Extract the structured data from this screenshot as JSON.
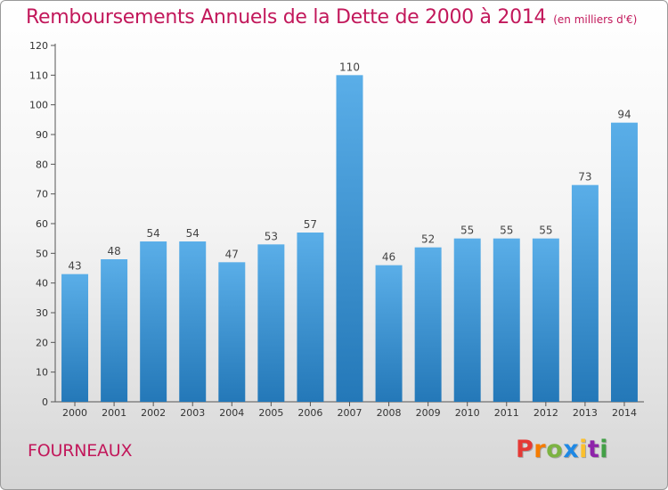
{
  "header": {
    "title": "Remboursements Annuels de la Dette de 2000 à 2014",
    "subtitle": "(en milliers d'€)"
  },
  "footer": {
    "commune": "FOURNEAUX",
    "logo": "Proxiti"
  },
  "colors": {
    "title": "#c2185b",
    "bar_top": "#5aaee8",
    "bar_bottom": "#2478b8",
    "logo_letters": [
      "#e53935",
      "#f57c00",
      "#7cb342",
      "#1e88e5",
      "#fbc02d",
      "#8e24aa",
      "#43a047"
    ]
  },
  "chart_data": {
    "type": "bar",
    "title": "Remboursements Annuels de la Dette de 2000 à 2014",
    "xlabel": "",
    "ylabel": "",
    "categories": [
      "2000",
      "2001",
      "2002",
      "2003",
      "2004",
      "2005",
      "2006",
      "2007",
      "2008",
      "2009",
      "2010",
      "2011",
      "2012",
      "2013",
      "2014"
    ],
    "values": [
      43,
      48,
      54,
      54,
      47,
      53,
      57,
      110,
      46,
      52,
      55,
      55,
      55,
      73,
      94
    ],
    "ylim": [
      0,
      120
    ],
    "yticks": [
      0,
      10,
      20,
      30,
      40,
      50,
      60,
      70,
      80,
      90,
      100,
      110,
      120
    ],
    "grid": false,
    "data_labels": true
  }
}
